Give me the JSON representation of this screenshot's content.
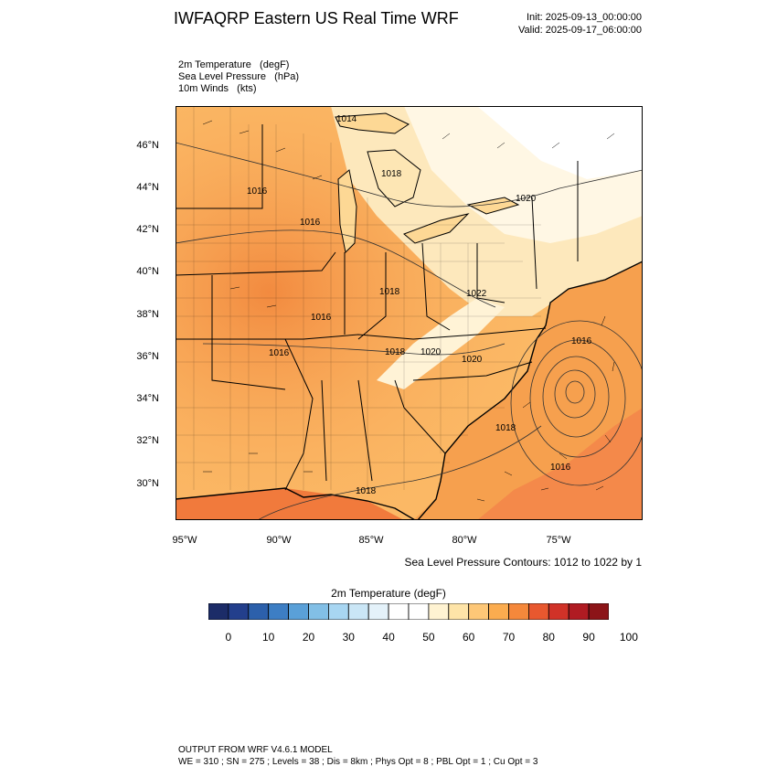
{
  "title": "IWFAQRP Eastern US Real Time WRF",
  "init": "Init: 2025-09-13_00:00:00",
  "valid": "Valid: 2025-09-17_06:00:00",
  "fields": [
    "2m Temperature   (degF)",
    "Sea Level Pressure   (hPa)",
    "10m Winds   (kts)"
  ],
  "lat_labels": [
    "46°N",
    "44°N",
    "42°N",
    "40°N",
    "38°N",
    "36°N",
    "34°N",
    "32°N",
    "30°N"
  ],
  "lon_labels": [
    "95°W",
    "90°W",
    "85°W",
    "80°W",
    "75°W"
  ],
  "isobar_labels": [
    "1014",
    "1018",
    "1016",
    "1016",
    "1020",
    "1018",
    "1022",
    "1016",
    "1016",
    "1018",
    "1020",
    "1020",
    "1016",
    "1018",
    "1016",
    "1018"
  ],
  "contour_note": "Sea Level Pressure Contours: 1012 to 1022 by 1",
  "colorbar": {
    "title": "2m Temperature  (degF)",
    "colors": [
      "#1c2c68",
      "#233f8c",
      "#2c60ab",
      "#3d7ec4",
      "#5aa0d8",
      "#82bfe6",
      "#a8d6f2",
      "#cae6f6",
      "#e4f2fa",
      "#ffffff",
      "#ffffff",
      "#fff3d2",
      "#fee4a8",
      "#fdc777",
      "#fbac4f",
      "#f5883b",
      "#e8582f",
      "#d13228",
      "#b01b22",
      "#8c1418"
    ],
    "labels": [
      "0",
      "10",
      "20",
      "30",
      "40",
      "50",
      "60",
      "70",
      "80",
      "90",
      "100"
    ]
  },
  "footer": {
    "line1": "OUTPUT FROM WRF V4.6.1 MODEL",
    "line2": "WE = 310 ; SN = 275 ; Levels = 38 ; Dis = 8km ; Phys Opt = 8 ; PBL Opt = 1 ; Cu Opt = 3"
  }
}
